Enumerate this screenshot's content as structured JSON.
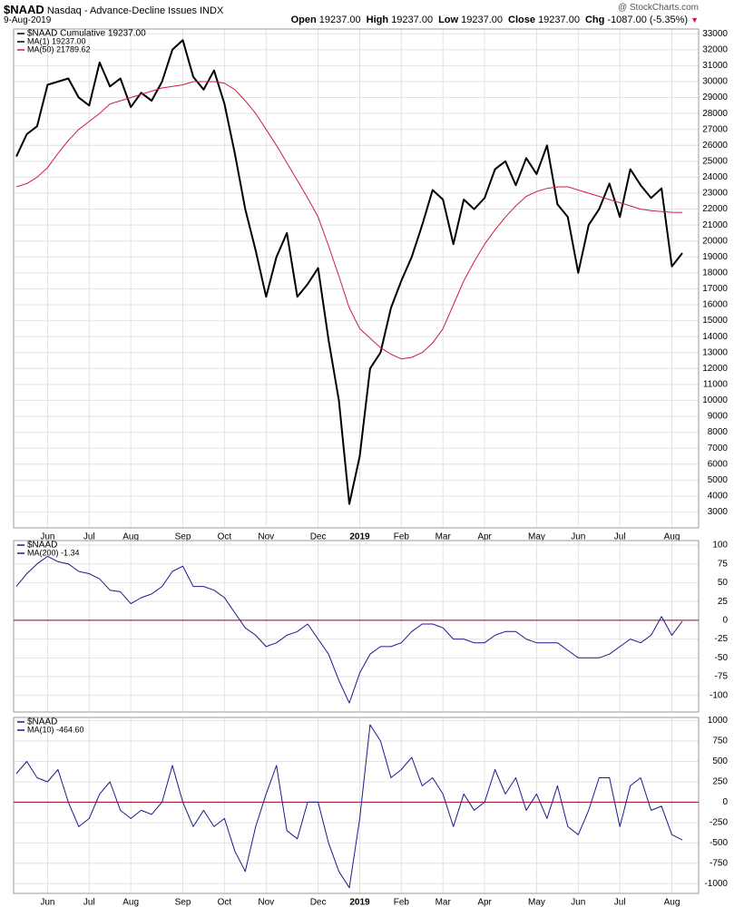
{
  "header": {
    "symbol": "$NAAD",
    "name": "Nasdaq - Advance-Decline Issues INDX",
    "date": "9-Aug-2019",
    "credit": "@ StockCharts.com",
    "quote": [
      {
        "label": "Open",
        "value": "19237.00"
      },
      {
        "label": "High",
        "value": "19237.00"
      },
      {
        "label": "Low",
        "value": "19237.00"
      },
      {
        "label": "Close",
        "value": "19237.00"
      },
      {
        "label": "Chg",
        "value": "-1087.00 (-5.35%)"
      }
    ]
  },
  "chart_data": [
    {
      "type": "line",
      "legend_title": "$NAAD Cumulative 19237.00",
      "grid": true,
      "categories": [
        null,
        null,
        null,
        "Jun",
        null,
        null,
        null,
        "Jul",
        null,
        null,
        null,
        "Aug",
        null,
        null,
        null,
        null,
        "Sep",
        null,
        null,
        null,
        "Oct",
        null,
        null,
        null,
        "Nov",
        null,
        null,
        null,
        null,
        "Dec",
        null,
        null,
        null,
        "2019",
        null,
        null,
        null,
        "Feb",
        null,
        null,
        null,
        "Mar",
        null,
        null,
        null,
        "Apr",
        null,
        null,
        null,
        null,
        "May",
        null,
        null,
        null,
        "Jun",
        null,
        null,
        null,
        "Jul",
        null,
        null,
        null,
        null,
        "Aug",
        null
      ],
      "series": [
        {
          "name": "MA(1) 19237.00",
          "color": "#000000",
          "width": 2,
          "values": [
            25300,
            26700,
            27200,
            29800,
            30000,
            30200,
            29000,
            28500,
            31200,
            29700,
            30200,
            28400,
            29300,
            28800,
            30000,
            32000,
            32600,
            30300,
            29500,
            30700,
            28600,
            25500,
            22000,
            19400,
            16500,
            19000,
            20500,
            16500,
            17300,
            18300,
            13800,
            10000,
            3500,
            6500,
            12000,
            13000,
            15800,
            17500,
            19000,
            21000,
            23200,
            22600,
            19800,
            22600,
            22000,
            22700,
            24500,
            25000,
            23500,
            25200,
            24200,
            26000,
            22300,
            21500,
            18000,
            21000,
            22000,
            23600,
            21500,
            24500,
            23500,
            22700,
            23300,
            18400,
            19237
          ]
        },
        {
          "name": "MA(50) 21789.62",
          "color": "#cc1f3f",
          "width": 1,
          "values": [
            23400,
            23600,
            24000,
            24600,
            25500,
            26300,
            27000,
            27500,
            28000,
            28600,
            28800,
            29000,
            29200,
            29400,
            29600,
            29700,
            29800,
            30000,
            30000,
            30000,
            29900,
            29500,
            28800,
            28000,
            27000,
            26000,
            24900,
            23800,
            22700,
            21500,
            19700,
            17800,
            15800,
            14500,
            13900,
            13300,
            12900,
            12600,
            12700,
            13000,
            13600,
            14500,
            16000,
            17500,
            18700,
            19800,
            20700,
            21500,
            22200,
            22800,
            23100,
            23300,
            23400,
            23400,
            23200,
            23000,
            22800,
            22600,
            22400,
            22200,
            22000,
            21900,
            21850,
            21800,
            21789.62
          ]
        }
      ],
      "ylim": [
        2000,
        33300
      ],
      "yticks": [
        3000,
        4000,
        5000,
        6000,
        7000,
        8000,
        9000,
        10000,
        11000,
        12000,
        13000,
        14000,
        15000,
        16000,
        17000,
        18000,
        19000,
        20000,
        21000,
        22000,
        23000,
        24000,
        25000,
        26000,
        27000,
        28000,
        29000,
        30000,
        31000,
        32000,
        33000
      ]
    },
    {
      "type": "line",
      "legend_title": "$NAAD",
      "grid": true,
      "reference_line": {
        "value": 0,
        "color": "#a0002a"
      },
      "series": [
        {
          "name": "MA(200) -1.34",
          "color": "#1a1a8c",
          "width": 1,
          "values": [
            45,
            62,
            75,
            85,
            78,
            75,
            65,
            62,
            55,
            40,
            38,
            22,
            30,
            35,
            45,
            65,
            72,
            45,
            45,
            40,
            30,
            10,
            -10,
            -20,
            -35,
            -30,
            -20,
            -15,
            -5,
            -25,
            -45,
            -80,
            -110,
            -70,
            -45,
            -35,
            -35,
            -30,
            -15,
            -5,
            -5,
            -10,
            -25,
            -25,
            -30,
            -30,
            -20,
            -15,
            -15,
            -25,
            -30,
            -30,
            -30,
            -40,
            -50,
            -50,
            -50,
            -45,
            -35,
            -25,
            -30,
            -20,
            5,
            -20,
            -1.34
          ]
        }
      ],
      "ylim": [
        -122,
        106
      ],
      "yticks": [
        -100,
        -75,
        -50,
        -25,
        0,
        25,
        50,
        75,
        100
      ]
    },
    {
      "type": "line",
      "legend_title": "$NAAD",
      "grid": true,
      "reference_line": {
        "value": 0,
        "color": "#a0002a"
      },
      "categories": [
        null,
        null,
        null,
        "Jun",
        null,
        null,
        null,
        "Jul",
        null,
        null,
        null,
        "Aug",
        null,
        null,
        null,
        null,
        "Sep",
        null,
        null,
        null,
        "Oct",
        null,
        null,
        null,
        "Nov",
        null,
        null,
        null,
        null,
        "Dec",
        null,
        null,
        null,
        "2019",
        null,
        null,
        null,
        "Feb",
        null,
        null,
        null,
        "Mar",
        null,
        null,
        null,
        "Apr",
        null,
        null,
        null,
        null,
        "May",
        null,
        null,
        null,
        "Jun",
        null,
        null,
        null,
        "Jul",
        null,
        null,
        null,
        null,
        "Aug",
        null
      ],
      "series": [
        {
          "name": "MA(10) -464.60",
          "color": "#1a1a8c",
          "width": 1,
          "values": [
            350,
            500,
            300,
            250,
            400,
            0,
            -300,
            -200,
            100,
            250,
            -100,
            -200,
            -100,
            -150,
            0,
            450,
            0,
            -300,
            -100,
            -300,
            -200,
            -600,
            -850,
            -300,
            100,
            450,
            -350,
            -450,
            0,
            0,
            -500,
            -850,
            -1050,
            -200,
            950,
            750,
            300,
            400,
            550,
            200,
            300,
            100,
            -300,
            100,
            -100,
            0,
            400,
            100,
            300,
            -100,
            100,
            -200,
            200,
            -300,
            -400,
            -100,
            300,
            300,
            -300,
            200,
            300,
            -100,
            -50,
            -400,
            -464.6
          ]
        }
      ],
      "ylim": [
        -1120,
        1040
      ],
      "yticks": [
        -1000,
        -750,
        -500,
        -250,
        0,
        250,
        500,
        750,
        1000
      ]
    }
  ]
}
